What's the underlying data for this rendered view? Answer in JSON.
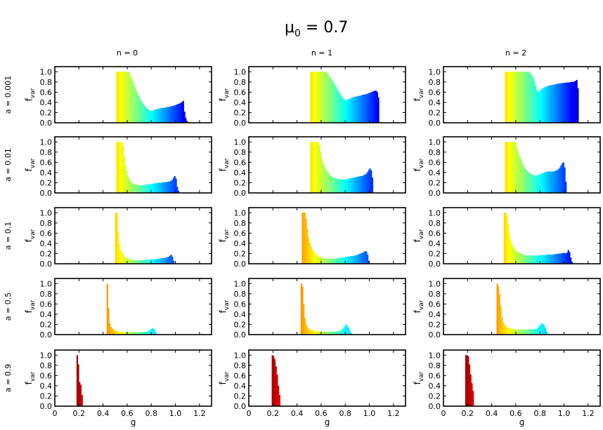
{
  "figure": {
    "title_main": "μ",
    "title_sub": "0",
    "title_rest": " = 0.7",
    "ylabel_main": "f",
    "ylabel_sub": "var",
    "xlabel": "g",
    "col_titles": [
      "n = 0",
      "n = 1",
      "n = 2"
    ],
    "row_titles": [
      "a = 0.001",
      "a = 0.01",
      "a = 0.1",
      "a = 0.5",
      "a = 0.9"
    ],
    "colormap": "jet (color encodes g)"
  },
  "chart_data": {
    "type": "bar",
    "x_ticks": [
      "0",
      "0.2",
      "0.4",
      "0.6",
      "0.8",
      "1.0",
      "1.2"
    ],
    "y_ticks": [
      "0.0",
      "0.2",
      "0.4",
      "0.6",
      "0.8",
      "1.0"
    ],
    "xlim": [
      0,
      1.3
    ],
    "ylim": [
      0,
      1.1
    ],
    "bin_width": 0.01,
    "bottom_row_only_x_ticks": true,
    "panels": [
      {
        "a": 0.001,
        "n": 0,
        "start": 0.51,
        "values": [
          1,
          1,
          1,
          1,
          1,
          1,
          1,
          1,
          1,
          1,
          1,
          0.92,
          0.88,
          0.82,
          0.76,
          0.7,
          0.64,
          0.58,
          0.53,
          0.48,
          0.44,
          0.4,
          0.36,
          0.33,
          0.3,
          0.28,
          0.26,
          0.24,
          0.23,
          0.23,
          0.24,
          0.25,
          0.26,
          0.27,
          0.27,
          0.28,
          0.28,
          0.29,
          0.29,
          0.29,
          0.3,
          0.3,
          0.31,
          0.31,
          0.32,
          0.32,
          0.33,
          0.33,
          0.34,
          0.35,
          0.36,
          0.37,
          0.38,
          0.39,
          0.41,
          0.43,
          0.22,
          0.1,
          0.04
        ]
      },
      {
        "a": 0.001,
        "n": 1,
        "start": 0.51,
        "values": [
          1,
          1,
          1,
          1,
          1,
          1,
          1,
          1,
          1,
          1,
          1,
          1,
          1,
          1,
          0.96,
          0.92,
          0.88,
          0.85,
          0.82,
          0.78,
          0.74,
          0.7,
          0.66,
          0.62,
          0.58,
          0.54,
          0.5,
          0.47,
          0.45,
          0.44,
          0.45,
          0.46,
          0.47,
          0.48,
          0.49,
          0.5,
          0.51,
          0.51,
          0.52,
          0.52,
          0.53,
          0.53,
          0.54,
          0.55,
          0.55,
          0.56,
          0.56,
          0.57,
          0.58,
          0.59,
          0.6,
          0.61,
          0.62,
          0.63,
          0.63,
          0.6,
          0.5
        ]
      },
      {
        "a": 0.001,
        "n": 2,
        "start": 0.51,
        "values": [
          1,
          1,
          1,
          1,
          1,
          1,
          1,
          1,
          1,
          1,
          1,
          1,
          1,
          1,
          1,
          1,
          1,
          1,
          1,
          1,
          0.98,
          0.95,
          0.92,
          0.87,
          0.8,
          0.72,
          0.64,
          0.6,
          0.62,
          0.64,
          0.66,
          0.68,
          0.69,
          0.7,
          0.71,
          0.72,
          0.73,
          0.73,
          0.74,
          0.74,
          0.75,
          0.75,
          0.76,
          0.76,
          0.77,
          0.77,
          0.77,
          0.78,
          0.78,
          0.78,
          0.79,
          0.79,
          0.79,
          0.79,
          0.8,
          0.8,
          0.8,
          0.81,
          0.82,
          0.84,
          0.68
        ]
      },
      {
        "a": 0.01,
        "n": 0,
        "start": 0.51,
        "values": [
          1,
          1,
          1,
          1,
          1,
          0.93,
          0.72,
          0.55,
          0.43,
          0.34,
          0.28,
          0.24,
          0.21,
          0.19,
          0.18,
          0.17,
          0.16,
          0.16,
          0.15,
          0.15,
          0.15,
          0.15,
          0.15,
          0.16,
          0.16,
          0.16,
          0.17,
          0.17,
          0.17,
          0.18,
          0.18,
          0.19,
          0.19,
          0.19,
          0.2,
          0.2,
          0.2,
          0.2,
          0.21,
          0.21,
          0.21,
          0.21,
          0.22,
          0.22,
          0.23,
          0.24,
          0.26,
          0.3,
          0.33,
          0.28,
          0.12,
          0.04
        ]
      },
      {
        "a": 0.01,
        "n": 1,
        "start": 0.51,
        "values": [
          1,
          1,
          1,
          1,
          1,
          1,
          1,
          0.94,
          0.8,
          0.68,
          0.6,
          0.54,
          0.48,
          0.44,
          0.4,
          0.37,
          0.35,
          0.33,
          0.31,
          0.3,
          0.29,
          0.28,
          0.27,
          0.27,
          0.27,
          0.27,
          0.26,
          0.26,
          0.26,
          0.27,
          0.27,
          0.28,
          0.28,
          0.29,
          0.29,
          0.3,
          0.3,
          0.31,
          0.31,
          0.32,
          0.32,
          0.33,
          0.33,
          0.34,
          0.35,
          0.36,
          0.38,
          0.41,
          0.45,
          0.48,
          0.44,
          0.3
        ]
      },
      {
        "a": 0.01,
        "n": 2,
        "start": 0.51,
        "values": [
          1,
          1,
          1,
          1,
          1,
          1,
          1,
          1,
          1,
          0.92,
          0.84,
          0.77,
          0.7,
          0.64,
          0.58,
          0.53,
          0.49,
          0.46,
          0.43,
          0.41,
          0.39,
          0.37,
          0.36,
          0.35,
          0.34,
          0.34,
          0.34,
          0.35,
          0.36,
          0.37,
          0.38,
          0.39,
          0.4,
          0.41,
          0.41,
          0.42,
          0.42,
          0.42,
          0.42,
          0.42,
          0.42,
          0.43,
          0.44,
          0.45,
          0.47,
          0.5,
          0.54,
          0.58,
          0.6,
          0.5,
          0.22
        ]
      },
      {
        "a": 0.1,
        "n": 0,
        "start": 0.5,
        "values": [
          1,
          1,
          0.6,
          0.38,
          0.28,
          0.22,
          0.18,
          0.15,
          0.13,
          0.11,
          0.1,
          0.09,
          0.085,
          0.08,
          0.075,
          0.07,
          0.07,
          0.07,
          0.07,
          0.07,
          0.07,
          0.07,
          0.07,
          0.07,
          0.07,
          0.075,
          0.075,
          0.08,
          0.08,
          0.08,
          0.085,
          0.085,
          0.09,
          0.09,
          0.09,
          0.1,
          0.1,
          0.1,
          0.11,
          0.11,
          0.11,
          0.12,
          0.12,
          0.13,
          0.14,
          0.16,
          0.18,
          0.14,
          0.06
        ]
      },
      {
        "a": 0.1,
        "n": 1,
        "start": 0.44,
        "values": [
          1,
          1,
          1,
          0.88,
          0.68,
          0.52,
          0.42,
          0.34,
          0.29,
          0.25,
          0.22,
          0.19,
          0.17,
          0.15,
          0.14,
          0.13,
          0.12,
          0.11,
          0.105,
          0.1,
          0.1,
          0.1,
          0.1,
          0.1,
          0.1,
          0.1,
          0.1,
          0.1,
          0.11,
          0.11,
          0.11,
          0.12,
          0.12,
          0.12,
          0.13,
          0.13,
          0.13,
          0.14,
          0.14,
          0.14,
          0.15,
          0.15,
          0.15,
          0.16,
          0.16,
          0.17,
          0.18,
          0.19,
          0.2,
          0.21,
          0.22,
          0.23,
          0.25,
          0.24,
          0.18,
          0.06
        ]
      },
      {
        "a": 0.1,
        "n": 2,
        "start": 0.5,
        "values": [
          1,
          1,
          0.96,
          0.78,
          0.6,
          0.48,
          0.4,
          0.34,
          0.3,
          0.27,
          0.25,
          0.23,
          0.22,
          0.21,
          0.2,
          0.19,
          0.18,
          0.17,
          0.17,
          0.16,
          0.16,
          0.16,
          0.16,
          0.16,
          0.16,
          0.16,
          0.16,
          0.16,
          0.16,
          0.17,
          0.17,
          0.17,
          0.17,
          0.17,
          0.17,
          0.18,
          0.18,
          0.18,
          0.18,
          0.18,
          0.18,
          0.18,
          0.19,
          0.19,
          0.19,
          0.2,
          0.2,
          0.2,
          0.21,
          0.21,
          0.21,
          0.2,
          0.22,
          0.27,
          0.23,
          0.12,
          0.04
        ]
      },
      {
        "a": 0.5,
        "n": 0,
        "start": 0.43,
        "values": [
          1,
          0.52,
          0.22,
          0.15,
          0.12,
          0.1,
          0.09,
          0.08,
          0.07,
          0.065,
          0.06,
          0.06,
          0.055,
          0.055,
          0.05,
          0.05,
          0.05,
          0.05,
          0.05,
          0.05,
          0.05,
          0.05,
          0.05,
          0.05,
          0.05,
          0.05,
          0.05,
          0.05,
          0.05,
          0.05,
          0.05,
          0.055,
          0.055,
          0.06,
          0.07,
          0.08,
          0.1,
          0.12,
          0.13,
          0.1,
          0.05
        ]
      },
      {
        "a": 0.5,
        "n": 1,
        "start": 0.43,
        "values": [
          1,
          0.95,
          0.6,
          0.32,
          0.2,
          0.15,
          0.12,
          0.1,
          0.09,
          0.085,
          0.08,
          0.075,
          0.07,
          0.07,
          0.065,
          0.065,
          0.06,
          0.06,
          0.06,
          0.06,
          0.06,
          0.06,
          0.06,
          0.06,
          0.06,
          0.06,
          0.06,
          0.06,
          0.06,
          0.06,
          0.065,
          0.065,
          0.07,
          0.08,
          0.1,
          0.13,
          0.16,
          0.2,
          0.18,
          0.14,
          0.09,
          0.04
        ]
      },
      {
        "a": 0.5,
        "n": 2,
        "start": 0.44,
        "values": [
          1,
          0.95,
          0.8,
          0.55,
          0.34,
          0.24,
          0.2,
          0.17,
          0.15,
          0.14,
          0.13,
          0.12,
          0.115,
          0.11,
          0.105,
          0.1,
          0.1,
          0.1,
          0.1,
          0.1,
          0.1,
          0.1,
          0.1,
          0.1,
          0.1,
          0.1,
          0.1,
          0.1,
          0.1,
          0.1,
          0.1,
          0.1,
          0.11,
          0.12,
          0.14,
          0.17,
          0.2,
          0.22,
          0.21,
          0.18,
          0.12,
          0.06
        ]
      },
      {
        "a": 0.9,
        "n": 0,
        "start": 0.18,
        "values": [
          1,
          0.82,
          0.47,
          0.42,
          0.22
        ]
      },
      {
        "a": 0.9,
        "n": 1,
        "start": 0.19,
        "values": [
          1,
          0.98,
          0.92,
          0.78,
          0.62,
          0.4,
          0.22
        ]
      },
      {
        "a": 0.9,
        "n": 2,
        "start": 0.18,
        "values": [
          1,
          1,
          0.98,
          0.82,
          0.62,
          0.45,
          0.3
        ]
      }
    ]
  }
}
